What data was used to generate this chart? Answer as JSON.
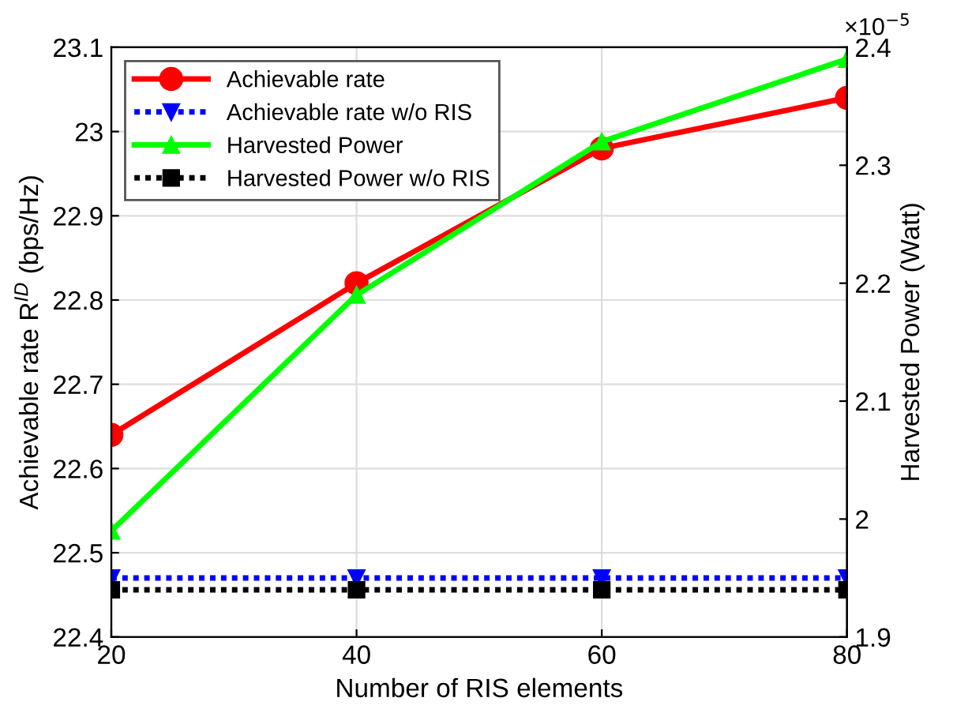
{
  "chart_data": {
    "type": "line",
    "xlabel": "Number of RIS elements",
    "ylabel": "Achievable rate R$^{ID}$ (bps/Hz)",
    "y2label": "Harvested Power (Watt)",
    "x": [
      20,
      40,
      60,
      80
    ],
    "xlim": [
      20,
      80
    ],
    "xticks": [
      20,
      40,
      60,
      80
    ],
    "ylim": [
      22.4,
      23.1
    ],
    "yticks": [
      22.4,
      22.5,
      22.6,
      22.7,
      22.8,
      22.9,
      {
        "value": 23,
        "label": "23"
      },
      23.1
    ],
    "y2lim": [
      1.9,
      2.4
    ],
    "y2ticks": [
      1.9,
      {
        "value": 2,
        "label": "2"
      },
      2.1,
      2.2,
      2.3,
      2.4
    ],
    "annotations": [
      "×10$^{−5}$"
    ],
    "grid": true,
    "legend": "top left",
    "series": [
      {
        "name": "Achievable rate",
        "color": "#ff0000",
        "values": [
          22.64,
          22.82,
          22.98,
          23.04
        ],
        "marker": "circle",
        "line_style": "solid"
      },
      {
        "name": "Achievable rate w/o RIS",
        "color": "#0000ff",
        "values": [
          22.47,
          22.47,
          22.47,
          22.47
        ],
        "marker": "triangle",
        "line_style": "dotted"
      },
      {
        "name": "Harvested Power",
        "color": "#00ff00",
        "values": [
          1.99,
          2.19,
          2.32,
          2.39
        ],
        "marker": "triangle_up",
        "line_style": "solid",
        "axis": "y2"
      },
      {
        "name": "Harvested Power w/o RIS",
        "color": "#000000",
        "values": [
          1.94,
          1.94,
          1.94,
          1.94
        ],
        "marker": "square",
        "line_style": "dotted",
        "axis": "y2"
      }
    ]
  }
}
